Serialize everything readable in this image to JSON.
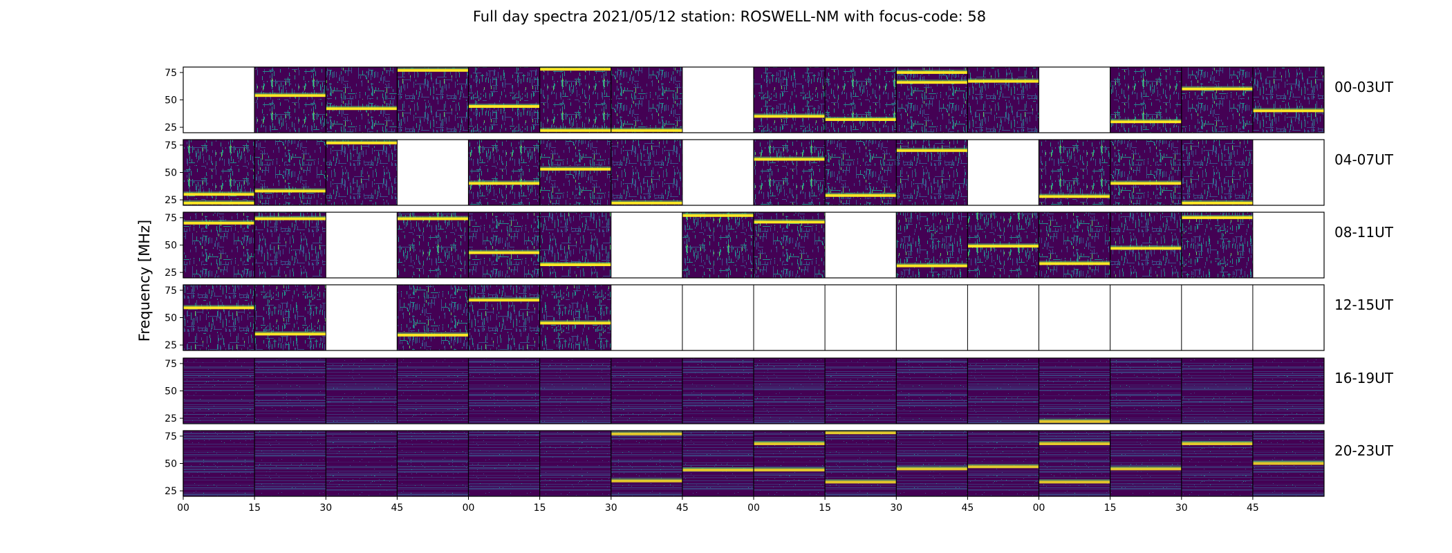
{
  "chart_data": {
    "type": "heatmap",
    "title": "Full day spectra 2021/05/12 station: ROSWELL-NM with focus-code: 58",
    "ylabel": "Frequency [MHz]",
    "xlabel": "",
    "ylim": [
      20,
      80
    ],
    "y_ticks": [
      "25",
      "50",
      "75"
    ],
    "x_tick_labels": [
      "00",
      "15",
      "30",
      "45",
      "00",
      "15",
      "30",
      "45",
      "00",
      "15",
      "30",
      "45",
      "00",
      "15",
      "30",
      "45"
    ],
    "colormap": [
      "#440154",
      "#3b528b",
      "#21918c",
      "#5ec962",
      "#fde725"
    ],
    "rows": [
      {
        "label": "00-03UT",
        "style": "bursty",
        "tiles": [
          0,
          1,
          1,
          1,
          1,
          1,
          1,
          0,
          1,
          1,
          1,
          1,
          0,
          1,
          1,
          1
        ],
        "bright_bands": [
          null,
          [
            54
          ],
          [
            42
          ],
          [
            77
          ],
          [
            44
          ],
          [
            78,
            22
          ],
          [
            22
          ],
          null,
          [
            35
          ],
          [
            32
          ],
          [
            66,
            75
          ],
          [
            67
          ],
          null,
          [
            30
          ],
          [
            60
          ],
          [
            40
          ]
        ]
      },
      {
        "label": "04-07UT",
        "style": "bursty",
        "tiles": [
          1,
          1,
          1,
          0,
          1,
          1,
          1,
          0,
          1,
          1,
          1,
          0,
          1,
          1,
          1,
          0
        ],
        "bright_bands": [
          [
            22,
            30
          ],
          [
            33
          ],
          [
            77
          ],
          null,
          [
            40
          ],
          [
            53
          ],
          [
            22
          ],
          null,
          [
            62
          ],
          [
            29
          ],
          [
            70
          ],
          null,
          [
            28
          ],
          [
            40
          ],
          [
            22
          ],
          null
        ]
      },
      {
        "label": "08-11UT",
        "style": "bursty",
        "tiles": [
          1,
          1,
          0,
          1,
          1,
          1,
          0,
          1,
          1,
          0,
          1,
          1,
          1,
          1,
          1,
          0
        ],
        "bright_bands": [
          [
            70
          ],
          [
            74
          ],
          null,
          [
            74
          ],
          [
            43
          ],
          [
            32
          ],
          null,
          [
            77
          ],
          [
            71
          ],
          null,
          [
            31
          ],
          [
            49
          ],
          [
            33
          ],
          [
            47
          ],
          [
            75
          ],
          null
        ]
      },
      {
        "label": "12-15UT",
        "style": "bursty",
        "tiles": [
          1,
          1,
          0,
          1,
          1,
          1,
          0,
          0,
          0,
          0,
          0,
          0,
          0,
          0,
          0,
          0
        ],
        "bright_bands": [
          [
            59
          ],
          [
            35
          ],
          null,
          [
            34
          ],
          [
            66
          ],
          [
            45
          ],
          null,
          null,
          null,
          null,
          null,
          null,
          null,
          null,
          null,
          null
        ]
      },
      {
        "label": "16-19UT",
        "style": "quiet",
        "tiles": [
          1,
          1,
          1,
          1,
          1,
          1,
          1,
          1,
          1,
          1,
          1,
          1,
          1,
          1,
          1,
          1
        ],
        "bright_bands": [
          null,
          null,
          null,
          null,
          null,
          null,
          null,
          null,
          null,
          null,
          null,
          null,
          [
            22
          ],
          null,
          null,
          null
        ]
      },
      {
        "label": "20-23UT",
        "style": "quiet",
        "tiles": [
          1,
          1,
          1,
          1,
          1,
          1,
          1,
          1,
          1,
          1,
          1,
          1,
          1,
          1,
          1,
          1
        ],
        "bright_bands": [
          null,
          null,
          null,
          null,
          null,
          null,
          [
            34,
            77
          ],
          [
            44
          ],
          [
            44,
            68
          ],
          [
            78,
            33
          ],
          [
            45
          ],
          [
            47
          ],
          [
            33,
            68
          ],
          [
            45
          ],
          [
            68
          ],
          [
            50
          ]
        ]
      }
    ]
  }
}
